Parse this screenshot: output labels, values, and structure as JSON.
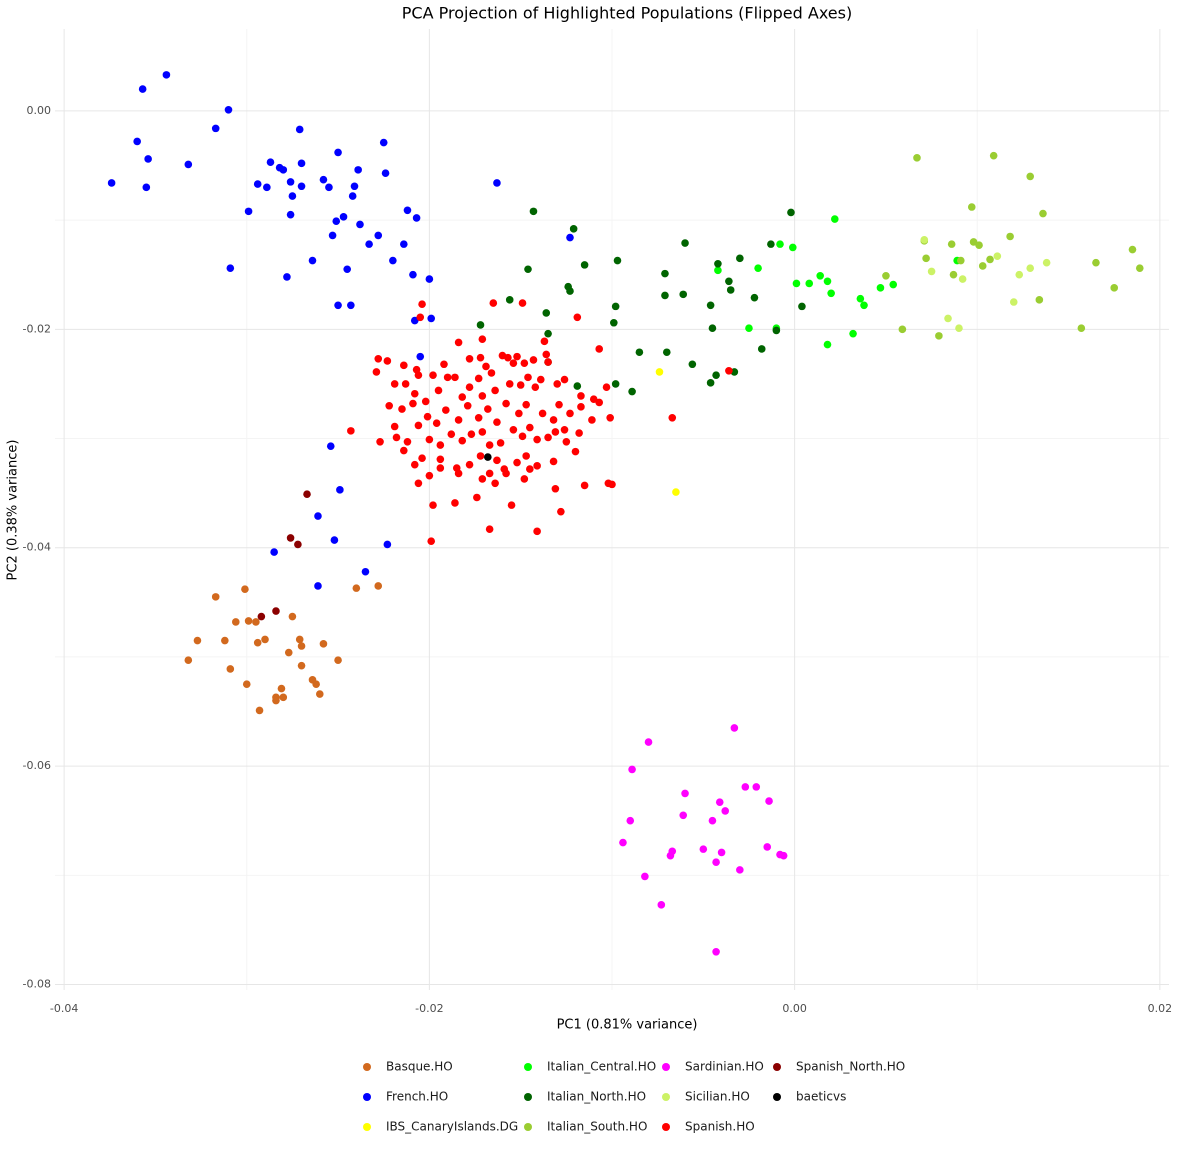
{
  "chart_data": {
    "type": "scatter",
    "title": "PCA Projection of Highlighted Populations (Flipped Axes)",
    "x_label": "PC1 (0.81% variance)",
    "y_label": "PC2 (0.38% variance)",
    "xlim": [
      -0.0405,
      0.0205
    ],
    "ylim": [
      -0.0805,
      0.0075
    ],
    "xticks": [
      -0.04,
      -0.02,
      {
        "value": 0,
        "label": "0.00"
      },
      0.02
    ],
    "yticks": [
      {
        "value": 0,
        "label": "0.00"
      },
      -0.02,
      -0.04,
      -0.06,
      -0.08
    ],
    "xminor": [
      -0.03,
      -0.01,
      0.01
    ],
    "yminor": [
      -0.01,
      -0.03,
      -0.05,
      -0.07
    ],
    "grid": true,
    "legend": "bottom",
    "series": [
      {
        "name": "Basque.HO",
        "color": "#d2691e",
        "x": [
          -0.0332,
          -0.0327,
          -0.0317,
          -0.0312,
          -0.0309,
          -0.0306,
          -0.0301,
          -0.03,
          -0.0299,
          -0.0295,
          -0.0294,
          -0.0293,
          -0.029,
          -0.0284,
          -0.0284,
          -0.0281,
          -0.028,
          -0.0277,
          -0.0275,
          -0.0271,
          -0.027,
          -0.027,
          -0.0264,
          -0.0262,
          -0.026,
          -0.0258,
          -0.025,
          -0.024,
          -0.0228
        ],
        "values": [
          -0.0503,
          -0.0485,
          -0.0445,
          -0.0485,
          -0.0511,
          -0.0468,
          -0.0438,
          -0.0525,
          -0.0467,
          -0.0468,
          -0.0487,
          -0.0549,
          -0.0484,
          -0.0537,
          -0.054,
          -0.0529,
          -0.0537,
          -0.0496,
          -0.0463,
          -0.0484,
          -0.0508,
          -0.049,
          -0.0521,
          -0.0525,
          -0.0534,
          -0.0488,
          -0.0503,
          -0.0437,
          -0.0435
        ]
      },
      {
        "name": "French.HO",
        "color": "#0000ff",
        "x": [
          -0.0374,
          -0.036,
          -0.0357,
          -0.0355,
          -0.0354,
          -0.0344,
          -0.0332,
          -0.0317,
          -0.031,
          -0.0309,
          -0.0299,
          -0.0294,
          -0.0289,
          -0.0287,
          -0.0282,
          -0.028,
          -0.0278,
          -0.0276,
          -0.0276,
          -0.0275,
          -0.0271,
          -0.027,
          -0.027,
          -0.0264,
          -0.0258,
          -0.0255,
          -0.0253,
          -0.0251,
          -0.025,
          -0.025,
          -0.0247,
          -0.0245,
          -0.0243,
          -0.0242,
          -0.0241,
          -0.0239,
          -0.0238,
          -0.0233,
          -0.0228,
          -0.0225,
          -0.0224,
          -0.022,
          -0.0214,
          -0.0212,
          -0.0209,
          -0.0208,
          -0.0207,
          -0.0205,
          -0.02,
          -0.0199,
          -0.0163,
          -0.0123,
          -0.0254,
          -0.0249,
          -0.0261,
          -0.0252,
          -0.0285,
          -0.0261,
          -0.0223,
          -0.0235
        ],
        "values": [
          -0.0066,
          -0.0028,
          0.002,
          -0.007,
          -0.0044,
          0.0033,
          -0.0049,
          -0.0016,
          0.0001,
          -0.0144,
          -0.0092,
          -0.0067,
          -0.007,
          -0.0047,
          -0.0052,
          -0.0054,
          -0.0152,
          -0.0065,
          -0.0095,
          -0.0078,
          -0.0017,
          -0.0048,
          -0.0069,
          -0.0137,
          -0.0063,
          -0.007,
          -0.0114,
          -0.0101,
          -0.0038,
          -0.0178,
          -0.0097,
          -0.0145,
          -0.0178,
          -0.0078,
          -0.0069,
          -0.0054,
          -0.0104,
          -0.0122,
          -0.0114,
          -0.0029,
          -0.0057,
          -0.0137,
          -0.0122,
          -0.0091,
          -0.015,
          -0.0192,
          -0.0098,
          -0.0225,
          -0.0154,
          -0.019,
          -0.0066,
          -0.0116,
          -0.0307,
          -0.0347,
          -0.0371,
          -0.0393,
          -0.0404,
          -0.0435,
          -0.0397,
          -0.0422
        ]
      },
      {
        "name": "IBS_CanaryIslands.DG",
        "color": "#ffff00",
        "x": [
          -0.0074,
          -0.0065
        ],
        "values": [
          -0.0239,
          -0.0349
        ]
      },
      {
        "name": "Italian_Central.HO",
        "color": "#00ff00",
        "x": [
          0.0022,
          -0.0008,
          -0.0001,
          -0.0042,
          -0.002,
          0.0001,
          0.0008,
          0.0014,
          0.0018,
          0.002,
          0.0036,
          0.0038,
          0.0047,
          0.0054,
          -0.0025,
          -0.001,
          0.0032,
          0.0018,
          0.0089
        ],
        "values": [
          -0.0099,
          -0.0122,
          -0.0125,
          -0.0146,
          -0.0144,
          -0.0158,
          -0.0158,
          -0.0151,
          -0.0156,
          -0.0167,
          -0.0172,
          -0.0178,
          -0.0162,
          -0.0159,
          -0.0199,
          -0.0199,
          -0.0204,
          -0.0214,
          -0.0137
        ]
      },
      {
        "name": "Italian_North.HO",
        "color": "#006400",
        "x": [
          -0.0143,
          -0.0121,
          -0.0115,
          -0.0146,
          -0.0172,
          -0.0156,
          -0.0136,
          -0.0123,
          -0.0097,
          -0.0124,
          -0.0098,
          -0.0099,
          -0.006,
          -0.0071,
          -0.0071,
          -0.0061,
          -0.0042,
          -0.0036,
          -0.003,
          -0.0035,
          -0.0022,
          -0.0002,
          -0.0013,
          -0.0046,
          -0.0045,
          -0.001,
          -0.0018,
          0.0004,
          -0.0085,
          -0.007,
          -0.0056,
          -0.0046,
          -0.0043,
          -0.0033,
          -0.0098,
          -0.0089,
          -0.0119,
          -0.0135,
          -0.0135
        ],
        "values": [
          -0.0092,
          -0.0108,
          -0.0141,
          -0.0145,
          -0.0196,
          -0.0173,
          -0.0185,
          -0.0165,
          -0.0137,
          -0.0161,
          -0.0179,
          -0.0194,
          -0.0121,
          -0.0149,
          -0.0169,
          -0.0168,
          -0.014,
          -0.0156,
          -0.0135,
          -0.0164,
          -0.0171,
          -0.0093,
          -0.0122,
          -0.0178,
          -0.0199,
          -0.0201,
          -0.0218,
          -0.0179,
          -0.0221,
          -0.0221,
          -0.0232,
          -0.0249,
          -0.0242,
          -0.0239,
          -0.025,
          -0.0257,
          -0.0252,
          -0.0204,
          -0.023
        ]
      },
      {
        "name": "Italian_South.HO",
        "color": "#9acd32",
        "x": [
          0.0067,
          0.0109,
          0.0129,
          0.0097,
          0.0136,
          0.0118,
          0.0071,
          0.0086,
          0.0101,
          0.0098,
          0.0185,
          0.0072,
          0.0107,
          0.0103,
          0.0165,
          0.0189,
          0.005,
          0.0134,
          0.0175,
          0.0087,
          0.0059,
          0.0079,
          0.0157,
          0.0091
        ],
        "values": [
          -0.0043,
          -0.0041,
          -0.006,
          -0.0088,
          -0.0094,
          -0.0115,
          -0.0119,
          -0.0122,
          -0.0123,
          -0.012,
          -0.0127,
          -0.0135,
          -0.0136,
          -0.0142,
          -0.0139,
          -0.0144,
          -0.0151,
          -0.0173,
          -0.0162,
          -0.015,
          -0.02,
          -0.0206,
          -0.0199,
          -0.0137
        ]
      },
      {
        "name": "Sardinian.HO",
        "color": "#ff00ff",
        "x": [
          -0.0033,
          -0.008,
          -0.0089,
          -0.006,
          -0.0027,
          -0.0021,
          -0.0014,
          -0.0041,
          -0.0061,
          -0.0045,
          -0.009,
          -0.0038,
          -0.0094,
          -0.005,
          -0.0015,
          -0.0008,
          -0.0006,
          -0.0067,
          -0.0068,
          -0.004,
          -0.0043,
          -0.003,
          -0.0082,
          -0.0073,
          -0.0043
        ],
        "values": [
          -0.0565,
          -0.0578,
          -0.0603,
          -0.0625,
          -0.0619,
          -0.0619,
          -0.0632,
          -0.0633,
          -0.0645,
          -0.065,
          -0.065,
          -0.0641,
          -0.067,
          -0.0676,
          -0.0674,
          -0.0681,
          -0.0682,
          -0.0678,
          -0.0682,
          -0.0679,
          -0.0688,
          -0.0695,
          -0.0701,
          -0.0727,
          -0.077
        ]
      },
      {
        "name": "Sicilian.HO",
        "color": "#ccf266",
        "x": [
          0.0071,
          0.0075,
          0.0092,
          0.0111,
          0.0123,
          0.0129,
          0.0138,
          0.012,
          0.0084,
          0.009
        ],
        "values": [
          -0.0118,
          -0.0147,
          -0.0154,
          -0.0133,
          -0.015,
          -0.0144,
          -0.0139,
          -0.0175,
          -0.019,
          -0.0199
        ]
      },
      {
        "name": "Spanish.HO",
        "color": "#ff0000",
        "x": [
          -0.0204,
          -0.0205,
          -0.0165,
          -0.0149,
          -0.0119,
          -0.0137,
          -0.0184,
          -0.0171,
          -0.0107,
          -0.0228,
          -0.0223,
          -0.0214,
          -0.0207,
          -0.0206,
          -0.0198,
          -0.0192,
          -0.0186,
          -0.0178,
          -0.0172,
          -0.0169,
          -0.0166,
          -0.016,
          -0.0157,
          -0.0154,
          -0.0152,
          -0.0148,
          -0.0143,
          -0.0136,
          -0.0135,
          -0.0229,
          -0.0219,
          -0.0213,
          -0.0208,
          -0.0202,
          -0.0195,
          -0.019,
          -0.0182,
          -0.0178,
          -0.0173,
          -0.0171,
          -0.0164,
          -0.0156,
          -0.015,
          -0.0146,
          -0.0142,
          -0.0139,
          -0.013,
          -0.0126,
          -0.0117,
          -0.011,
          -0.0107,
          -0.0103,
          -0.0222,
          -0.0215,
          -0.0209,
          -0.0201,
          -0.0196,
          -0.0191,
          -0.0184,
          -0.0179,
          -0.0173,
          -0.0168,
          -0.0163,
          -0.0158,
          -0.0151,
          -0.0147,
          -0.0145,
          -0.0138,
          -0.0132,
          -0.0129,
          -0.0123,
          -0.0117,
          -0.0111,
          -0.0101,
          -0.0118,
          -0.0126,
          -0.0131,
          -0.0219,
          -0.0227,
          -0.0218,
          -0.0212,
          -0.0206,
          -0.02,
          -0.0194,
          -0.0188,
          -0.0182,
          -0.0177,
          -0.0171,
          -0.0167,
          -0.0161,
          -0.0154,
          -0.0149,
          -0.0141,
          -0.0135,
          -0.0214,
          -0.0204,
          -0.0194,
          -0.0185,
          -0.0178,
          -0.0172,
          -0.0167,
          -0.0163,
          -0.0159,
          -0.0152,
          -0.0147,
          -0.0141,
          -0.0132,
          -0.0125,
          -0.012,
          -0.0208,
          -0.02,
          -0.0194,
          -0.0184,
          -0.0171,
          -0.0164,
          -0.0158,
          -0.0148,
          -0.0145,
          -0.0206,
          -0.0198,
          -0.0186,
          -0.0174,
          -0.0155,
          -0.0131,
          -0.0115,
          -0.0102,
          -0.01,
          -0.0167,
          -0.0141,
          -0.0128,
          -0.0199,
          -0.0243,
          -0.0067,
          -0.0036
        ],
        "values": [
          -0.0177,
          -0.0189,
          -0.0176,
          -0.0176,
          -0.0189,
          -0.0211,
          -0.0212,
          -0.0209,
          -0.0218,
          -0.0227,
          -0.0229,
          -0.0233,
          -0.0237,
          -0.0242,
          -0.0242,
          -0.0232,
          -0.0244,
          -0.0227,
          -0.0226,
          -0.0234,
          -0.024,
          -0.0224,
          -0.0226,
          -0.0231,
          -0.0225,
          -0.0231,
          -0.0228,
          -0.0223,
          -0.023,
          -0.0239,
          -0.025,
          -0.025,
          -0.0259,
          -0.0266,
          -0.0256,
          -0.0244,
          -0.0262,
          -0.0253,
          -0.0245,
          -0.0261,
          -0.0256,
          -0.025,
          -0.0251,
          -0.0244,
          -0.0253,
          -0.0246,
          -0.025,
          -0.0246,
          -0.0261,
          -0.0264,
          -0.0267,
          -0.0253,
          -0.027,
          -0.0273,
          -0.0268,
          -0.028,
          -0.0286,
          -0.0274,
          -0.0283,
          -0.027,
          -0.0281,
          -0.0273,
          -0.0285,
          -0.0268,
          -0.0277,
          -0.0269,
          -0.029,
          -0.0277,
          -0.0283,
          -0.0269,
          -0.0277,
          -0.0271,
          -0.0283,
          -0.0281,
          -0.0295,
          -0.0292,
          -0.0294,
          -0.0289,
          -0.0303,
          -0.0299,
          -0.0303,
          -0.0288,
          -0.0301,
          -0.0306,
          -0.0296,
          -0.0302,
          -0.0296,
          -0.0294,
          -0.0306,
          -0.0304,
          -0.0292,
          -0.0298,
          -0.0301,
          -0.0299,
          -0.0311,
          -0.0318,
          -0.0319,
          -0.0327,
          -0.0324,
          -0.0316,
          -0.0332,
          -0.032,
          -0.0328,
          -0.0322,
          -0.0316,
          -0.0325,
          -0.0321,
          -0.0303,
          -0.0312,
          -0.0324,
          -0.0334,
          -0.0327,
          -0.0332,
          -0.0337,
          -0.0341,
          -0.0332,
          -0.0337,
          -0.0328,
          -0.0341,
          -0.0361,
          -0.0359,
          -0.0354,
          -0.0361,
          -0.0346,
          -0.0343,
          -0.0341,
          -0.0342,
          -0.0383,
          -0.0385,
          -0.0367,
          -0.0394,
          -0.0293,
          -0.0281,
          -0.0238
        ]
      },
      {
        "name": "Spanish_North.HO",
        "color": "#8b0000",
        "x": [
          -0.0267,
          -0.0276,
          -0.0272,
          -0.0292,
          -0.0284
        ],
        "values": [
          -0.0351,
          -0.0391,
          -0.0397,
          -0.0463,
          -0.0458
        ]
      },
      {
        "name": "baeticvs",
        "color": "#000000",
        "x": [
          -0.0168
        ],
        "values": [
          -0.0317
        ]
      }
    ]
  }
}
